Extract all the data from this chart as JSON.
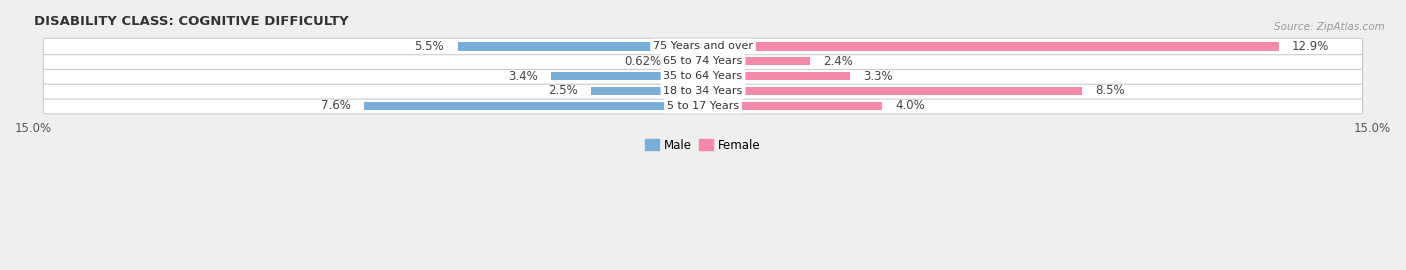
{
  "title": "DISABILITY CLASS: COGNITIVE DIFFICULTY",
  "source": "Source: ZipAtlas.com",
  "categories": [
    "5 to 17 Years",
    "18 to 34 Years",
    "35 to 64 Years",
    "65 to 74 Years",
    "75 Years and over"
  ],
  "male_values": [
    7.6,
    2.5,
    3.4,
    0.62,
    5.5
  ],
  "female_values": [
    4.0,
    8.5,
    3.3,
    2.4,
    12.9
  ],
  "male_labels": [
    "7.6%",
    "2.5%",
    "3.4%",
    "0.62%",
    "5.5%"
  ],
  "female_labels": [
    "4.0%",
    "8.5%",
    "3.3%",
    "2.4%",
    "12.9%"
  ],
  "male_color": "#7aaed6",
  "female_color": "#f48aaa",
  "max_val": 15.0,
  "bg_color": "#efefef",
  "row_bg_color": "#e2e2e2",
  "title_fontsize": 9.5,
  "label_fontsize": 8.5,
  "axis_label_fontsize": 8.5,
  "category_fontsize": 8.0
}
